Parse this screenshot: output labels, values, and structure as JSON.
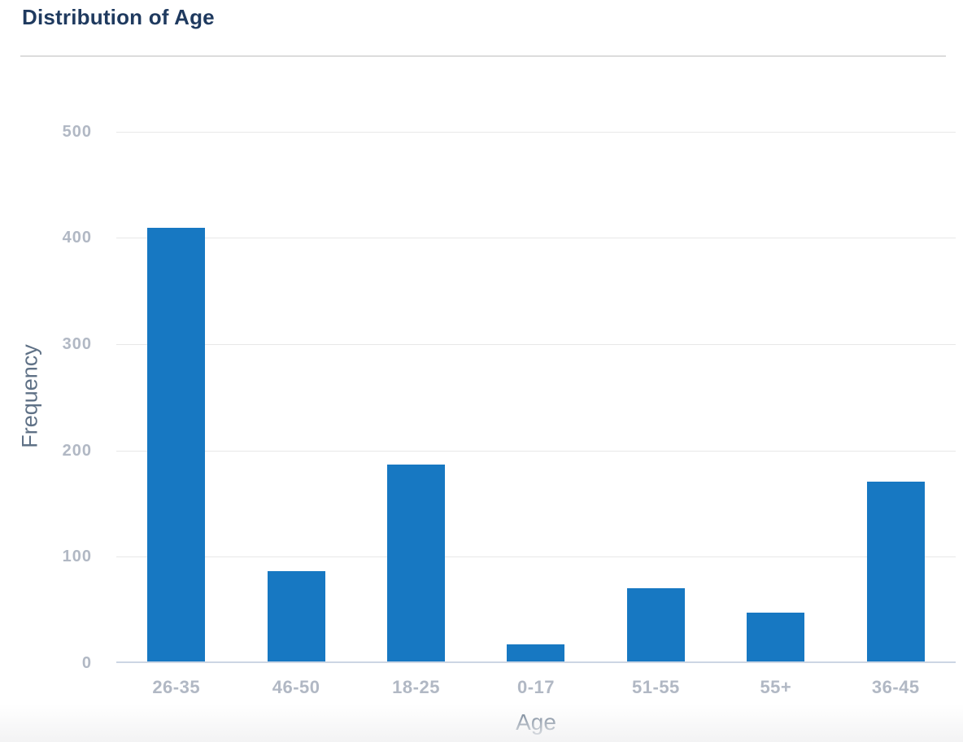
{
  "header": {
    "title": "Distribution of Age"
  },
  "colors": {
    "title": "#1f3a5f",
    "axis_title": "#5f7186",
    "tick_label": "#b1b8c4",
    "bar": "#1778c2",
    "gridline": "#e8e8e8",
    "axis_line": "#ccd6e4",
    "divider": "#dcdcdc"
  },
  "chart_data": {
    "type": "bar",
    "title": "Distribution of Age",
    "xlabel": "Age",
    "ylabel": "Frequency",
    "categories": [
      "26-35",
      "46-50",
      "18-25",
      "0-17",
      "51-55",
      "55+",
      "36-45"
    ],
    "values": [
      408,
      85,
      185,
      16,
      69,
      46,
      169
    ],
    "yticks": [
      0,
      100,
      200,
      300,
      400,
      500
    ],
    "ylim": [
      0,
      555
    ],
    "grid": true,
    "legend": "none",
    "bar_color": "#1778c2"
  }
}
